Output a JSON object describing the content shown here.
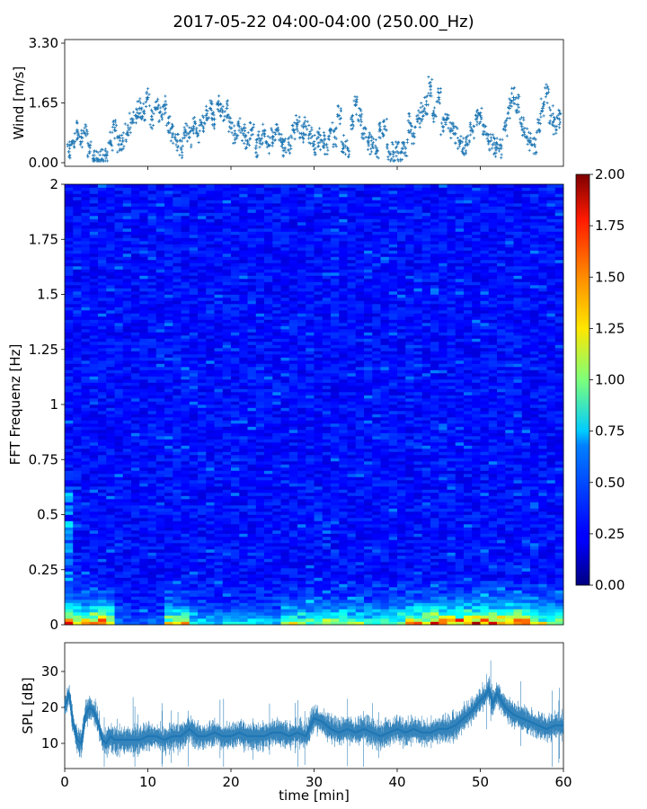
{
  "figure": {
    "title": "2017-05-22 04:00-04:00 (250.00_Hz)",
    "xlabel": "time [min]"
  },
  "chart_data": [
    {
      "type": "scatter",
      "panel": "wind",
      "title": "",
      "xlabel": "time [min]",
      "ylabel": "Wind [m/s]",
      "xlim": [
        0,
        60
      ],
      "ylim": [
        0.0,
        3.3
      ],
      "yticks": [
        "0.00",
        "1.65",
        "3.30"
      ],
      "marker": "+",
      "color": "#1f77b4",
      "x": [
        0.5,
        1,
        1.5,
        2,
        2.5,
        3,
        3.5,
        4,
        4.5,
        5,
        5.5,
        6,
        6.5,
        7,
        7.5,
        8,
        8.5,
        9,
        9.5,
        10,
        10.5,
        11,
        11.5,
        12,
        12.5,
        13,
        13.5,
        14,
        14.5,
        15,
        15.5,
        16,
        16.5,
        17,
        17.5,
        18,
        18.5,
        19,
        19.5,
        20,
        20.5,
        21,
        21.5,
        22,
        22.5,
        23,
        23.5,
        24,
        24.5,
        25,
        25.5,
        26,
        26.5,
        27,
        27.5,
        28,
        28.5,
        29,
        29.5,
        30,
        30.5,
        31,
        31.5,
        32,
        32.5,
        33,
        33.5,
        34,
        34.5,
        35,
        35.5,
        36,
        36.5,
        37,
        37.5,
        38,
        38.5,
        39,
        39.5,
        40,
        40.5,
        41,
        41.5,
        42,
        42.5,
        43,
        43.5,
        44,
        44.5,
        45,
        45.5,
        46,
        46.5,
        47,
        47.5,
        48,
        48.5,
        49,
        49.5,
        50,
        50.5,
        51,
        51.5,
        52,
        52.5,
        53,
        53.5,
        54,
        54.5,
        55,
        55.5,
        56,
        56.5,
        57,
        57.5,
        58,
        58.5,
        59,
        59.5
      ],
      "y": [
        0.3,
        0.6,
        0.9,
        0.7,
        0.8,
        0.3,
        0.1,
        0.1,
        0.1,
        0.2,
        0.6,
        0.9,
        0.5,
        0.6,
        0.8,
        1.1,
        1.3,
        1.5,
        1.4,
        1.8,
        1.2,
        1.5,
        1.4,
        1.6,
        1.1,
        0.8,
        0.6,
        0.4,
        0.9,
        0.7,
        1.0,
        0.8,
        1.1,
        1.3,
        1.5,
        1.2,
        1.6,
        1.4,
        1.5,
        1.1,
        0.8,
        1.0,
        0.8,
        0.6,
        0.9,
        0.4,
        0.6,
        0.8,
        0.5,
        0.7,
        0.9,
        0.6,
        0.4,
        0.5,
        0.9,
        1.1,
        0.8,
        1.0,
        0.8,
        0.5,
        0.7,
        0.6,
        0.5,
        0.9,
        0.7,
        1.3,
        0.5,
        0.4,
        1.2,
        1.6,
        1.3,
        0.8,
        0.6,
        0.5,
        0.4,
        0.9,
        1.0,
        0.3,
        0.3,
        0.3,
        0.3,
        0.4,
        1.1,
        0.8,
        1.2,
        1.4,
        1.6,
        2.1,
        1.3,
        1.8,
        1.0,
        1.2,
        0.9,
        0.8,
        0.6,
        0.4,
        0.5,
        0.9,
        1.2,
        1.3,
        1.0,
        0.6,
        0.5,
        0.4,
        0.4,
        0.9,
        1.5,
        1.8,
        1.6,
        1.0,
        0.7,
        0.6,
        0.5,
        1.1,
        1.5,
        1.9,
        1.3,
        1.0,
        1.2
      ]
    },
    {
      "type": "heatmap",
      "panel": "spectrogram",
      "title": "",
      "ylabel": "FFT Frequenz [Hz]",
      "xlim": [
        0,
        60
      ],
      "ylim": [
        0,
        2
      ],
      "yticks": [
        "0",
        "0.25",
        "0.5",
        "0.75",
        "1",
        "1.25",
        "1.5",
        "1.75",
        "2"
      ],
      "colormap": "jet",
      "clim": [
        0.0,
        2.0
      ],
      "colorbar_ticks": [
        "0.00",
        "0.25",
        "0.50",
        "0.75",
        "1.00",
        "1.25",
        "1.50",
        "1.75",
        "2.00"
      ],
      "low_freq_energy_by_segment": [
        {
          "t": [
            0,
            6.2
          ],
          "level": 1.6
        },
        {
          "t": [
            6.2,
            12.5
          ],
          "level": 0.2
        },
        {
          "t": [
            12.5,
            15.5
          ],
          "level": 1.2
        },
        {
          "t": [
            15.5,
            26.5
          ],
          "level": 0.5
        },
        {
          "t": [
            26.5,
            33
          ],
          "level": 1.0
        },
        {
          "t": [
            33,
            41
          ],
          "level": 0.9
        },
        {
          "t": [
            41,
            49
          ],
          "level": 1.5
        },
        {
          "t": [
            49,
            56
          ],
          "level": 1.7
        },
        {
          "t": [
            56,
            60
          ],
          "level": 1.0
        }
      ]
    },
    {
      "type": "line",
      "panel": "spl",
      "title": "",
      "xlabel": "time [min]",
      "ylabel": "SPL [dB]",
      "xlim": [
        0,
        60
      ],
      "ylim": [
        3,
        38
      ],
      "yticks": [
        "10",
        "20",
        "30"
      ],
      "xticks": [
        "0",
        "10",
        "20",
        "30",
        "40",
        "50",
        "60"
      ],
      "color": "#1f77b4",
      "x": [
        0,
        0.5,
        1,
        1.5,
        2,
        2.5,
        3,
        3.5,
        4,
        4.5,
        5,
        5.5,
        6,
        7,
        8,
        9,
        10,
        11,
        12,
        13,
        14,
        15,
        16,
        17,
        18,
        19,
        20,
        21,
        22,
        23,
        24,
        25,
        26,
        27,
        28,
        29,
        30,
        31,
        32,
        33,
        34,
        35,
        36,
        37,
        38,
        39,
        40,
        41,
        42,
        43,
        44,
        45,
        46,
        47,
        48,
        49,
        50,
        50.5,
        51,
        51.5,
        52,
        53,
        54,
        55,
        56,
        57,
        58,
        59,
        60
      ],
      "y": [
        20,
        24,
        16,
        11,
        10,
        18,
        20,
        19,
        16,
        11,
        10,
        12,
        11,
        11,
        11,
        11,
        12,
        12,
        11,
        12,
        12,
        14,
        12,
        12,
        13,
        12,
        12,
        13,
        12,
        12,
        12,
        13,
        13,
        12,
        13,
        12,
        17,
        16,
        14,
        13,
        14,
        13,
        14,
        13,
        12,
        13,
        14,
        13,
        14,
        13,
        13,
        14,
        14,
        15,
        17,
        19,
        22,
        23,
        25,
        21,
        24,
        20,
        18,
        17,
        16,
        15,
        14,
        15,
        15
      ]
    }
  ]
}
